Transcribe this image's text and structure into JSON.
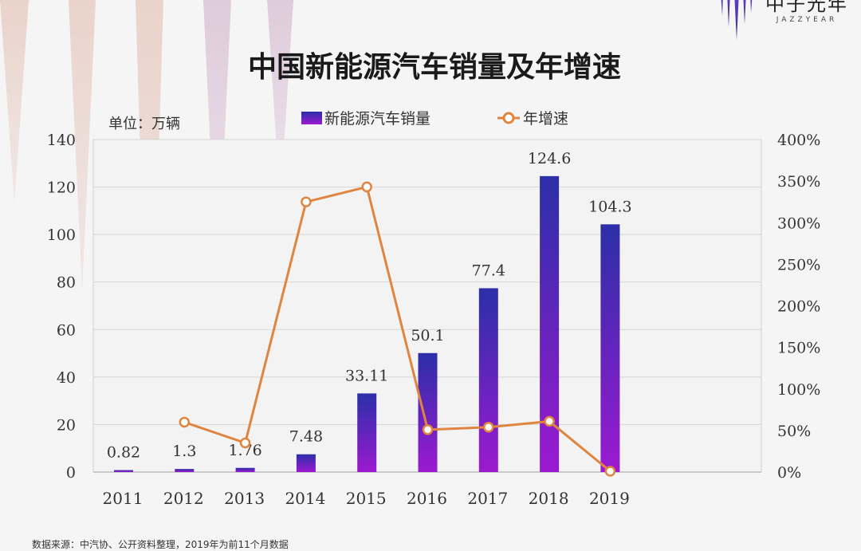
{
  "logo": {
    "cn": "中子光年",
    "en": "JAZZYEAR",
    "icon": "spikes-logo-icon"
  },
  "footnote": "数据来源：中汽协、公开资料整理，2019年为前11个月数据",
  "chart_data": {
    "type": "bar",
    "title": "中国新能源汽车销量及年增速",
    "unit_label": "单位：万辆",
    "categories": [
      "2011",
      "2012",
      "2013",
      "2014",
      "2015",
      "2016",
      "2017",
      "2018",
      "2019"
    ],
    "series": [
      {
        "name": "新能源汽车销量",
        "kind": "bar",
        "axis": "left",
        "values": [
          0.82,
          1.3,
          1.76,
          7.48,
          33.11,
          50.1,
          77.4,
          124.6,
          104.3
        ],
        "labels": [
          "0.82",
          "1.3",
          "1.76",
          "7.48",
          "33.11",
          "50.1",
          "77.4",
          "124.6",
          "104.3"
        ],
        "gradient": [
          "#2b2fa8",
          "#9b1ad0"
        ]
      },
      {
        "name": "年增速",
        "kind": "line",
        "axis": "right",
        "values": [
          null,
          60,
          35,
          325,
          343,
          51,
          54,
          61,
          1
        ],
        "color": "#e0853f"
      }
    ],
    "y_left": {
      "min": 0,
      "max": 140,
      "ticks": [
        0,
        20,
        40,
        60,
        80,
        100,
        120,
        140
      ]
    },
    "y_right": {
      "min": 0,
      "max": 400,
      "ticks": [
        "0%",
        "50%",
        "100%",
        "150%",
        "200%",
        "250%",
        "300%",
        "350%",
        "400%"
      ]
    },
    "grid": true,
    "legend_position": "top"
  }
}
